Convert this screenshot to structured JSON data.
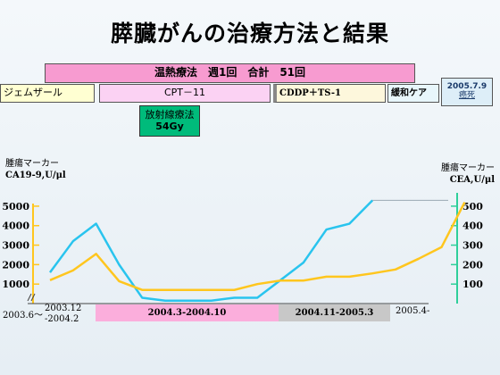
{
  "title": "膵臓がんの治療方法と結果",
  "treatments": {
    "hyperthermia": "温熱療法　週1回　合計　51回",
    "gemzar": "ジェムザール",
    "cpt11": "CPT－11",
    "cddp": "CDDP＋TS-1",
    "palliative": "緩和ケア",
    "death_date": "2005.7.9",
    "death_label": "癌死",
    "radiation_label": "放射線療法",
    "radiation_dose": "54Gy"
  },
  "periods": {
    "p0_start": "2003.6～",
    "p1_top": "2003.12",
    "p1_bottom": "-2004.2",
    "p2": "2004.3-2004.10",
    "p3": "2004.11-2005.3",
    "p4": "2005.4-"
  },
  "colors": {
    "ca199": "#29c4ee",
    "cea": "#ffc61e",
    "left_axis": "#ffc61e",
    "right_axis": "#2ecf9a",
    "hyperthermia": "#f79bd0",
    "cpt11": "#fbd2f3",
    "radiation": "#00bb7b",
    "cddp": "#fdf7dc",
    "palliative": "#e8f6fb",
    "death": "#ddeef8",
    "gemzar": "#ffffd2",
    "period_pink": "#fbaedc",
    "period_gray": "#c8c8c8"
  },
  "chart_data": {
    "type": "line",
    "left_axis": {
      "label_top": "腫瘍マーカー",
      "label_bottom": "CA19-9,U/μl",
      "ticks": [
        1000,
        2000,
        3000,
        4000,
        5000
      ],
      "ylim": [
        0,
        5500
      ]
    },
    "right_axis": {
      "label_top": "腫瘍マーカー",
      "label_bottom": "CEA,U/μl",
      "ticks": [
        100,
        200,
        300,
        400,
        500
      ],
      "ylim": [
        0,
        550
      ]
    },
    "series": [
      {
        "key": "ca199",
        "axis": "left",
        "values": [
          1600,
          3200,
          4100,
          2000,
          300,
          150,
          150,
          150,
          300,
          300,
          1200,
          2100,
          3800,
          4100,
          5300,
          5300,
          5300,
          5300,
          5300,
          5300
        ]
      },
      {
        "key": "cea",
        "axis": "right",
        "values": [
          120,
          170,
          255,
          115,
          70,
          70,
          70,
          70,
          70,
          100,
          118,
          118,
          138,
          138,
          155,
          175,
          230,
          290,
          520
        ]
      }
    ]
  }
}
